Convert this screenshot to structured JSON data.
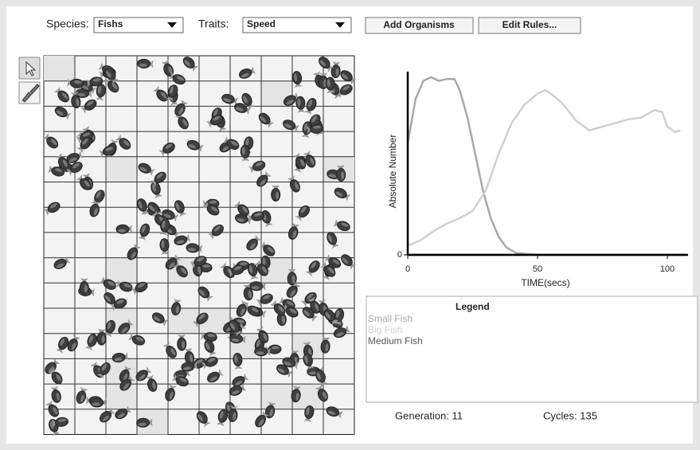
{
  "toolbar": {
    "species_label": "Species:",
    "species_value": "Fishs",
    "traits_label": "Traits:",
    "traits_value": "Speed",
    "buttons": [
      "Add Organisms",
      "Edit Rules..."
    ]
  },
  "graph": {
    "type": "line",
    "ylabel": "Absolute Number",
    "xlabel": "TIME(secs)",
    "xlim": [
      0,
      107
    ],
    "xticks": [
      0,
      50,
      100
    ],
    "ylim": [
      0,
      100
    ],
    "yticks": [
      0
    ],
    "series": [
      {
        "name": "Small Fish",
        "color": "#a8a8a8",
        "x": [
          0,
          3,
          6,
          9,
          12,
          15,
          18,
          20,
          23,
          26,
          29,
          32,
          35,
          38,
          42,
          50,
          107
        ],
        "values": [
          61,
          85,
          95,
          97,
          95,
          96,
          96,
          90,
          75,
          55,
          35,
          20,
          10,
          4,
          1,
          0,
          0
        ]
      },
      {
        "name": "Big Fish",
        "color": "#d0d0d0",
        "x": [
          0,
          5,
          10,
          15,
          20,
          25,
          30,
          35,
          40,
          45,
          50,
          53,
          57,
          60,
          65,
          70,
          75,
          80,
          85,
          90,
          95,
          98,
          100,
          103,
          105
        ],
        "values": [
          5,
          8,
          13,
          17,
          20,
          24,
          35,
          55,
          72,
          82,
          88,
          90,
          86,
          82,
          73,
          68,
          70,
          72,
          74,
          75,
          79,
          78,
          70,
          67,
          68
        ]
      },
      {
        "name": "Medium Fish",
        "color": "#555555",
        "x": [
          0,
          107
        ],
        "values": [
          0,
          0
        ]
      }
    ]
  },
  "legend": {
    "title": "Legend"
  },
  "status": {
    "generation": "Generation: 11",
    "cycles": "Cycles: 135"
  }
}
